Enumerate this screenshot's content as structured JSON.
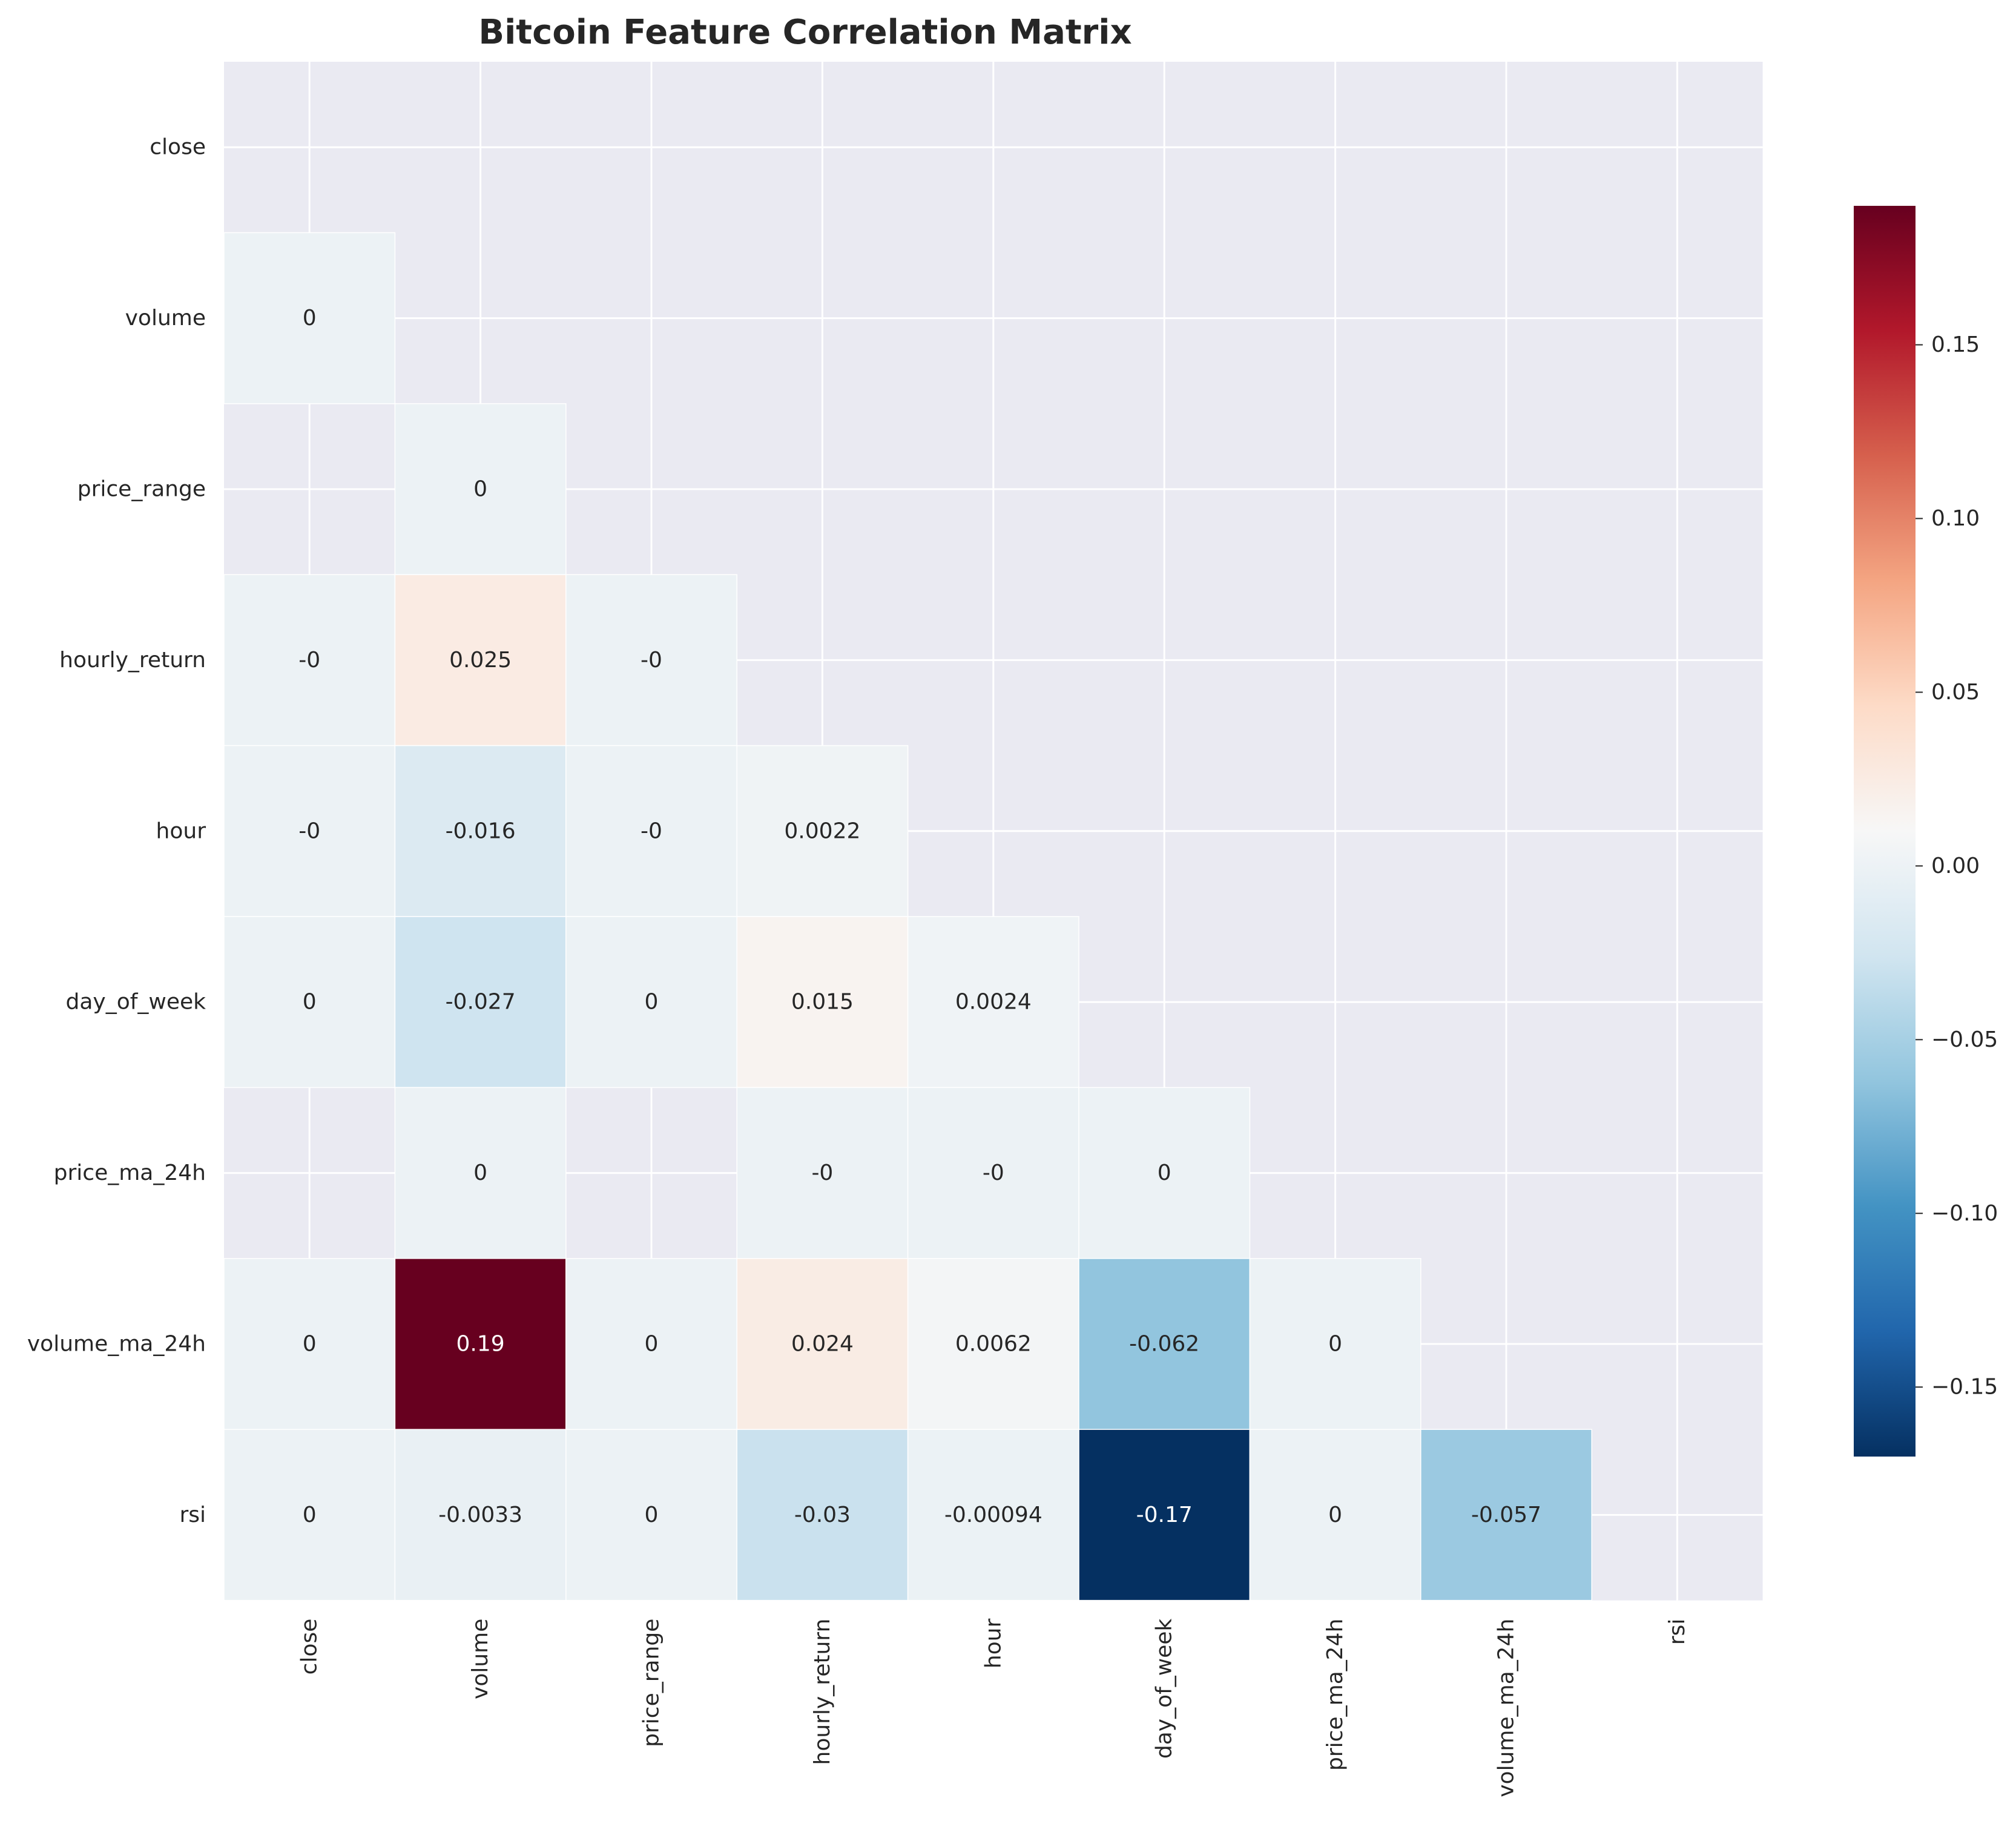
{
  "chart_data": {
    "type": "heatmap",
    "title": "Bitcoin Feature Correlation Matrix",
    "xlabel": "",
    "ylabel": "",
    "row_labels": [
      "close",
      "volume",
      "price_range",
      "hourly_return",
      "hour",
      "day_of_week",
      "price_ma_24h",
      "volume_ma_24h",
      "rsi"
    ],
    "col_labels": [
      "close",
      "volume",
      "price_range",
      "hourly_return",
      "hour",
      "day_of_week",
      "price_ma_24h",
      "volume_ma_24h",
      "rsi"
    ],
    "mask": "upper triangle and diagonal hidden; NaN cells blank",
    "cells": [
      [
        null,
        null,
        null,
        null,
        null,
        null,
        null,
        null,
        null
      ],
      [
        {
          "value": 0,
          "label": "0"
        },
        null,
        null,
        null,
        null,
        null,
        null,
        null,
        null
      ],
      [
        null,
        {
          "value": 0,
          "label": "0"
        },
        null,
        null,
        null,
        null,
        null,
        null,
        null
      ],
      [
        {
          "value": 0,
          "label": "-0"
        },
        {
          "value": 0.025,
          "label": "0.025"
        },
        {
          "value": 0,
          "label": "-0"
        },
        null,
        null,
        null,
        null,
        null,
        null
      ],
      [
        {
          "value": 0,
          "label": "-0"
        },
        {
          "value": -0.016,
          "label": "-0.016"
        },
        {
          "value": 0,
          "label": "-0"
        },
        {
          "value": 0.0022,
          "label": "0.0022"
        },
        null,
        null,
        null,
        null,
        null
      ],
      [
        {
          "value": 0,
          "label": "0"
        },
        {
          "value": -0.027,
          "label": "-0.027"
        },
        {
          "value": 0,
          "label": "0"
        },
        {
          "value": 0.015,
          "label": "0.015"
        },
        {
          "value": 0.0024,
          "label": "0.0024"
        },
        null,
        null,
        null,
        null
      ],
      [
        null,
        {
          "value": 0,
          "label": "0"
        },
        null,
        {
          "value": 0,
          "label": "-0"
        },
        {
          "value": 0,
          "label": "-0"
        },
        {
          "value": 0,
          "label": "0"
        },
        null,
        null,
        null
      ],
      [
        {
          "value": 0,
          "label": "0"
        },
        {
          "value": 0.19,
          "label": "0.19"
        },
        {
          "value": 0,
          "label": "0"
        },
        {
          "value": 0.024,
          "label": "0.024"
        },
        {
          "value": 0.0062,
          "label": "0.0062"
        },
        {
          "value": -0.062,
          "label": "-0.062"
        },
        {
          "value": 0,
          "label": "0"
        },
        null,
        null
      ],
      [
        {
          "value": 0,
          "label": "0"
        },
        {
          "value": -0.0033,
          "label": "-0.0033"
        },
        {
          "value": 0,
          "label": "0"
        },
        {
          "value": -0.03,
          "label": "-0.03"
        },
        {
          "value": -0.00094,
          "label": "-0.00094"
        },
        {
          "value": -0.17,
          "label": "-0.17"
        },
        {
          "value": 0,
          "label": "0"
        },
        {
          "value": -0.057,
          "label": "-0.057"
        },
        null
      ]
    ],
    "colorbar": {
      "colormap": "RdBu_r",
      "vmin": -0.17,
      "vmax": 0.19,
      "ticks": [
        -0.15,
        -0.1,
        -0.05,
        0,
        0.05,
        0.1,
        0.15
      ],
      "tick_labels": [
        "−0.15",
        "−0.10",
        "−0.05",
        "0.00",
        "0.05",
        "0.10",
        "0.15"
      ]
    },
    "grid": true,
    "legend": "colorbar-right"
  },
  "colors": {
    "background": "#ffffff",
    "axes_face": "#eaeaf2",
    "grid": "#ffffff",
    "text": "#262626"
  }
}
